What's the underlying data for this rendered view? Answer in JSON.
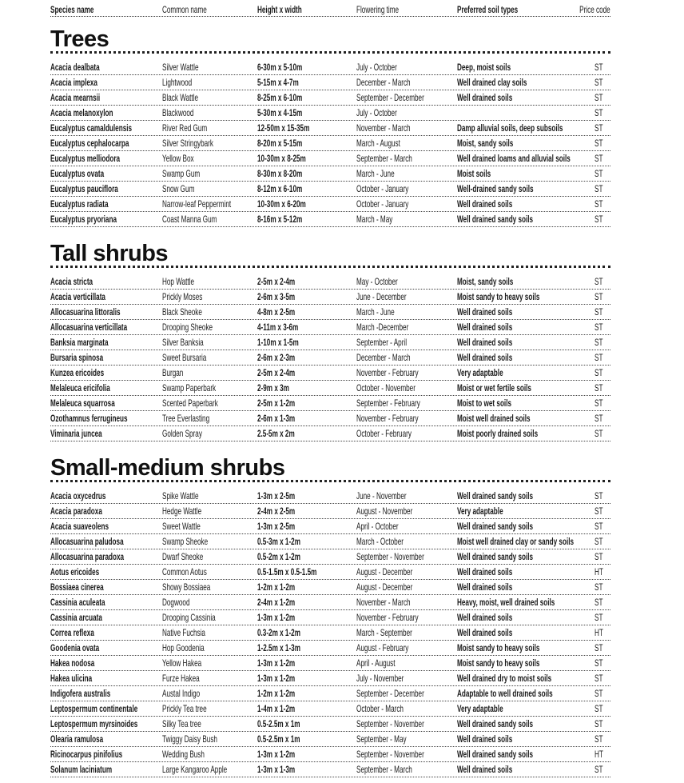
{
  "columns": [
    "Species name",
    "Common name",
    "Height x width",
    "Flowering time",
    "Preferred soil types",
    "Price code"
  ],
  "sections": [
    {
      "title": "Trees",
      "rows": [
        [
          "Acacia dealbata",
          "Silver Wattle",
          "6-30m x 5-10m",
          "July - October",
          "Deep, moist soils",
          "ST"
        ],
        [
          "Acacia implexa",
          "Lightwood",
          "5-15m x 4-7m",
          "December - March",
          "Well drained clay soils",
          "ST"
        ],
        [
          "Acacia mearnsii",
          "Black Wattle",
          "8-25m x 6-10m",
          "September - December",
          "Well drained soils",
          "ST"
        ],
        [
          "Acacia melanoxylon",
          "Blackwood",
          "5-30m x 4-15m",
          "July - October",
          "",
          "ST"
        ],
        [
          "Eucalyptus camaldulensis",
          "River Red Gum",
          "12-50m x 15-35m",
          "November - March",
          "Damp alluvial soils, deep subsoils",
          "ST"
        ],
        [
          "Eucalyptus cephalocarpa",
          "Silver Stringybark",
          "8-20m x 5-15m",
          "March - August",
          "Moist, sandy soils",
          "ST"
        ],
        [
          "Eucalyptus melliodora",
          "Yellow Box",
          "10-30m x 8-25m",
          "September - March",
          "Well drained loams and alluvial soils",
          "ST"
        ],
        [
          "Eucalyptus ovata",
          "Swamp Gum",
          "8-30m x 8-20m",
          "March - June",
          "Moist soils",
          "ST"
        ],
        [
          "Eucalyptus pauciflora",
          "Snow Gum",
          "8-12m x 6-10m",
          "October - January",
          "Well-drained sandy soils",
          "ST"
        ],
        [
          "Eucalyptus radiata",
          "Narrow-leaf Peppermint",
          "10-30m x 6-20m",
          "October - January",
          "Well drained soils",
          "ST"
        ],
        [
          "Eucalyptus  pryoriana",
          "Coast Manna Gum",
          "8-16m x 5-12m",
          "March - May",
          "Well drained sandy soils",
          "ST"
        ]
      ]
    },
    {
      "title": "Tall shrubs",
      "rows": [
        [
          "Acacia stricta",
          "Hop Wattle",
          "2-5m x 2-4m",
          "May - October",
          "Moist, sandy soils",
          "ST"
        ],
        [
          "Acacia verticillata",
          "Prickly Moses",
          "2-6m x 3-5m",
          "June - December",
          "Moist sandy to heavy soils",
          "ST"
        ],
        [
          "Allocasuarina littoralis",
          "Black Sheoke",
          "4-8m x 2-5m",
          "March - June",
          "Well drained soils",
          "ST"
        ],
        [
          "Allocasuarina verticillata",
          "Drooping Sheoke",
          "4-11m x 3-6m",
          "March -December",
          "Well drained soils",
          "ST"
        ],
        [
          "Banksia marginata",
          "Silver Banksia",
          "1-10m x 1-5m",
          "September - April",
          "Well drained soils",
          "ST"
        ],
        [
          "Bursaria spinosa",
          "Sweet Bursaria",
          "2-6m x 2-3m",
          "December - March",
          "Well drained soils",
          "ST"
        ],
        [
          "Kunzea ericoides",
          "Burgan",
          "2-5m x 2-4m",
          "November - February",
          "Very adaptable",
          "ST"
        ],
        [
          "Melaleuca ericifolia",
          "Swamp Paperbark",
          "2-9m x 3m",
          "October - November",
          "Moist or wet fertile soils",
          "ST"
        ],
        [
          "Melaleuca squarrosa",
          "Scented Paperbark",
          "2-5m x 1-2m",
          "September - February",
          "Moist to wet soils",
          "ST"
        ],
        [
          "Ozothamnus ferrugineus",
          "Tree Everlasting",
          "2-6m x 1-3m",
          "November - February",
          "Moist well drained soils",
          "ST"
        ],
        [
          "Viminaria juncea",
          "Golden Spray",
          "2.5-5m x 2m",
          "October - February",
          "Moist poorly drained soils",
          "ST"
        ]
      ]
    },
    {
      "title": "Small-medium shrubs",
      "rows": [
        [
          "Acacia oxycedrus",
          "Spike Wattle",
          "1-3m x 2-5m",
          "June - November",
          "Well drained sandy soils",
          "ST"
        ],
        [
          "Acacia paradoxa",
          "Hedge Wattle",
          "2-4m x 2-5m",
          "August - November",
          "Very adaptable",
          "ST"
        ],
        [
          "Acacia suaveolens",
          "Sweet Wattle",
          "1-3m x 2-5m",
          "April - October",
          "Well drained sandy soils",
          "ST"
        ],
        [
          "Allocasuarina paludosa",
          "Swamp Sheoke",
          "0.5-3m x 1-2m",
          "March - October",
          "Moist well drained clay or sandy soils",
          "ST"
        ],
        [
          "Allocasuarina paradoxa",
          "Dwarf Sheoke",
          "0.5-2m x 1-2m",
          "September - November",
          "Well drained sandy soils",
          "ST"
        ],
        [
          "Aotus ericoides",
          "Common Aotus",
          "0.5-1.5m x 0.5-1.5m",
          "August - December",
          "Well drained soils",
          "HT"
        ],
        [
          "Bossiaea cinerea",
          "Showy Bossiaea",
          "1-2m x 1-2m",
          "August - December",
          "Well drained soils",
          "ST"
        ],
        [
          "Cassinia aculeata",
          "Dogwood",
          "2-4m x 1-2m",
          "November - March",
          "Heavy, moist, well drained soils",
          "ST"
        ],
        [
          "Cassinia arcuata",
          "Drooping Cassinia",
          "1-3m x 1-2m",
          "November - February",
          "Well drained soils",
          "ST"
        ],
        [
          "Correa reflexa",
          "Native Fuchsia",
          "0.3-2m x 1-2m",
          "March - September",
          "Well drained soils",
          "HT"
        ],
        [
          "Goodenia ovata",
          "Hop Goodenia",
          "1-2.5m x 1-3m",
          "August - February",
          "Moist sandy to heavy soils",
          "ST"
        ],
        [
          "Hakea nodosa",
          "Yellow Hakea",
          "1-3m x 1-2m",
          "April - August",
          "Moist sandy to heavy soils",
          "ST"
        ],
        [
          "Hakea ulicina",
          "Furze Hakea",
          "1-3m x 1-2m",
          "July - November",
          "Well drained dry to moist soils",
          "ST"
        ],
        [
          "Indigofera australis",
          "Austal Indigo",
          "1-2m x 1-2m",
          "September - December",
          "Adaptable to well drained soils",
          "ST"
        ],
        [
          "Leptospermum continentale",
          "Prickly Tea tree",
          "1-4m x 1-2m",
          "October - March",
          "Very adaptable",
          "ST"
        ],
        [
          "Leptospermum myrsinoides",
          "Silky Tea tree",
          "0.5-2.5m x 1m",
          "September - November",
          "Well drained sandy soils",
          "ST"
        ],
        [
          "Olearia ramulosa",
          "Twiggy Daisy Bush",
          "0.5-2.5m x 1m",
          "September - May",
          "Well drained soils",
          "ST"
        ],
        [
          "Ricinocarpus pinifolius",
          "Wedding Bush",
          "1-3m x 1-2m",
          "September - November",
          "Well drained sandy soils",
          "HT"
        ],
        [
          "Solanum laciniatum",
          "Large Kangaroo Apple",
          "1-3m x 1-3m",
          "September - March",
          "Well drained soils",
          "ST"
        ]
      ]
    }
  ]
}
